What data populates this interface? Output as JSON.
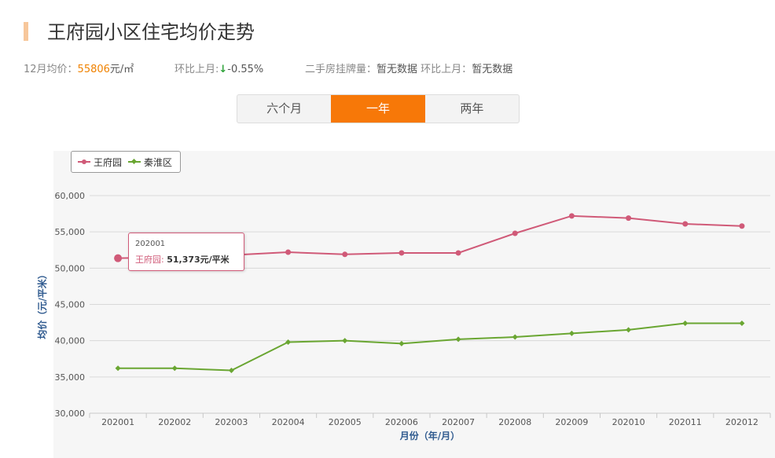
{
  "page": {
    "title": "王府园小区住宅均价走势",
    "price_label": "12月均价：",
    "price_value": "55806",
    "price_unit": "元/㎡",
    "mom_label": "环比上月:",
    "mom_arrow": "↓",
    "mom_value": "-0.55%",
    "listing_label": "二手房挂牌量：",
    "listing_value": "暂无数据",
    "listing_mom_label": "环比上月：",
    "listing_mom_value": "暂无数据"
  },
  "tabs": [
    {
      "label": "六个月",
      "active": false
    },
    {
      "label": "一年",
      "active": true
    },
    {
      "label": "两年",
      "active": false
    }
  ],
  "colors": {
    "accent": "#f77808",
    "series_1": "#d05a78",
    "series_2": "#6aa632",
    "axis_title": "#2f5a8f"
  },
  "tooltip": {
    "x": "202001",
    "series": "王府园:",
    "value": "51,373元/平米"
  },
  "chart_data": {
    "type": "line",
    "xlabel": "月份（年/月）",
    "ylabel": "均价（元/平米）",
    "ylim": [
      30000,
      60000
    ],
    "yticks": [
      "30,000",
      "35,000",
      "40,000",
      "45,000",
      "50,000",
      "55,000",
      "60,000"
    ],
    "grid": true,
    "legend_position": "top-left",
    "categories": [
      "202001",
      "202002",
      "202003",
      "202004",
      "202005",
      "202006",
      "202007",
      "202008",
      "202009",
      "202010",
      "202011",
      "202012"
    ],
    "series": [
      {
        "name": "王府园",
        "color": "#d05a78",
        "marker": "circle",
        "values": [
          51373,
          51500,
          51800,
          52200,
          51900,
          52100,
          52100,
          54800,
          57200,
          56900,
          56100,
          55806
        ]
      },
      {
        "name": "秦淮区",
        "color": "#6aa632",
        "marker": "diamond",
        "values": [
          36200,
          36200,
          35900,
          39800,
          40000,
          39600,
          40200,
          40500,
          41000,
          41500,
          42400,
          42400
        ]
      }
    ]
  }
}
